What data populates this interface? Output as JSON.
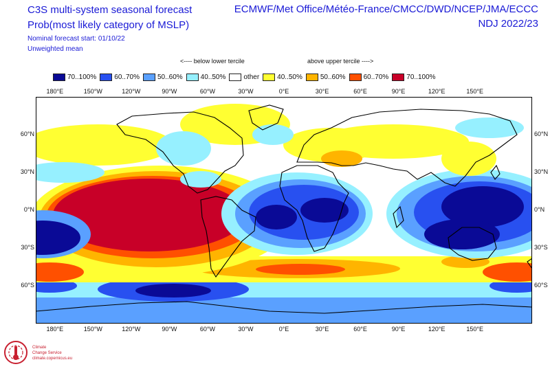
{
  "titles": {
    "line1": "C3S multi-system seasonal forecast",
    "line2": "Prob(most likely category of MSLP)",
    "line3": "Nominal forecast start: 01/10/22",
    "line4": "Unweighted mean",
    "providers": "ECMWF/Met Office/Météo-France/CMCC/DWD/NCEP/JMA/ECCC",
    "season": "NDJ 2022/23"
  },
  "legend": {
    "below_label": "<---- below lower tercile",
    "above_label": "above upper tercile ---->",
    "items": [
      {
        "label": "70..100%",
        "color": "#0a0a96"
      },
      {
        "label": "60..70%",
        "color": "#2850f0"
      },
      {
        "label": "50..60%",
        "color": "#5aa0ff"
      },
      {
        "label": "40..50%",
        "color": "#96f0ff"
      },
      {
        "label": "other",
        "color": "#ffffff"
      },
      {
        "label": "40..50%",
        "color": "#ffff32"
      },
      {
        "label": "50..60%",
        "color": "#ffb400"
      },
      {
        "label": "60..70%",
        "color": "#ff5000"
      },
      {
        "label": "70..100%",
        "color": "#c80028"
      }
    ]
  },
  "map": {
    "lon_labels": [
      "180°E",
      "150°W",
      "120°W",
      "90°W",
      "60°W",
      "30°W",
      "0°E",
      "30°E",
      "60°E",
      "90°E",
      "120°E",
      "150°E"
    ],
    "lat_labels": [
      "60°N",
      "30°N",
      "0°N",
      "30°S",
      "60°S"
    ],
    "lon_range": [
      -195,
      195
    ],
    "lat_range": [
      90,
      -90
    ]
  },
  "logo": {
    "line1": "Climate",
    "line2": "Change Service",
    "line3": "climate.copernicus.eu"
  }
}
